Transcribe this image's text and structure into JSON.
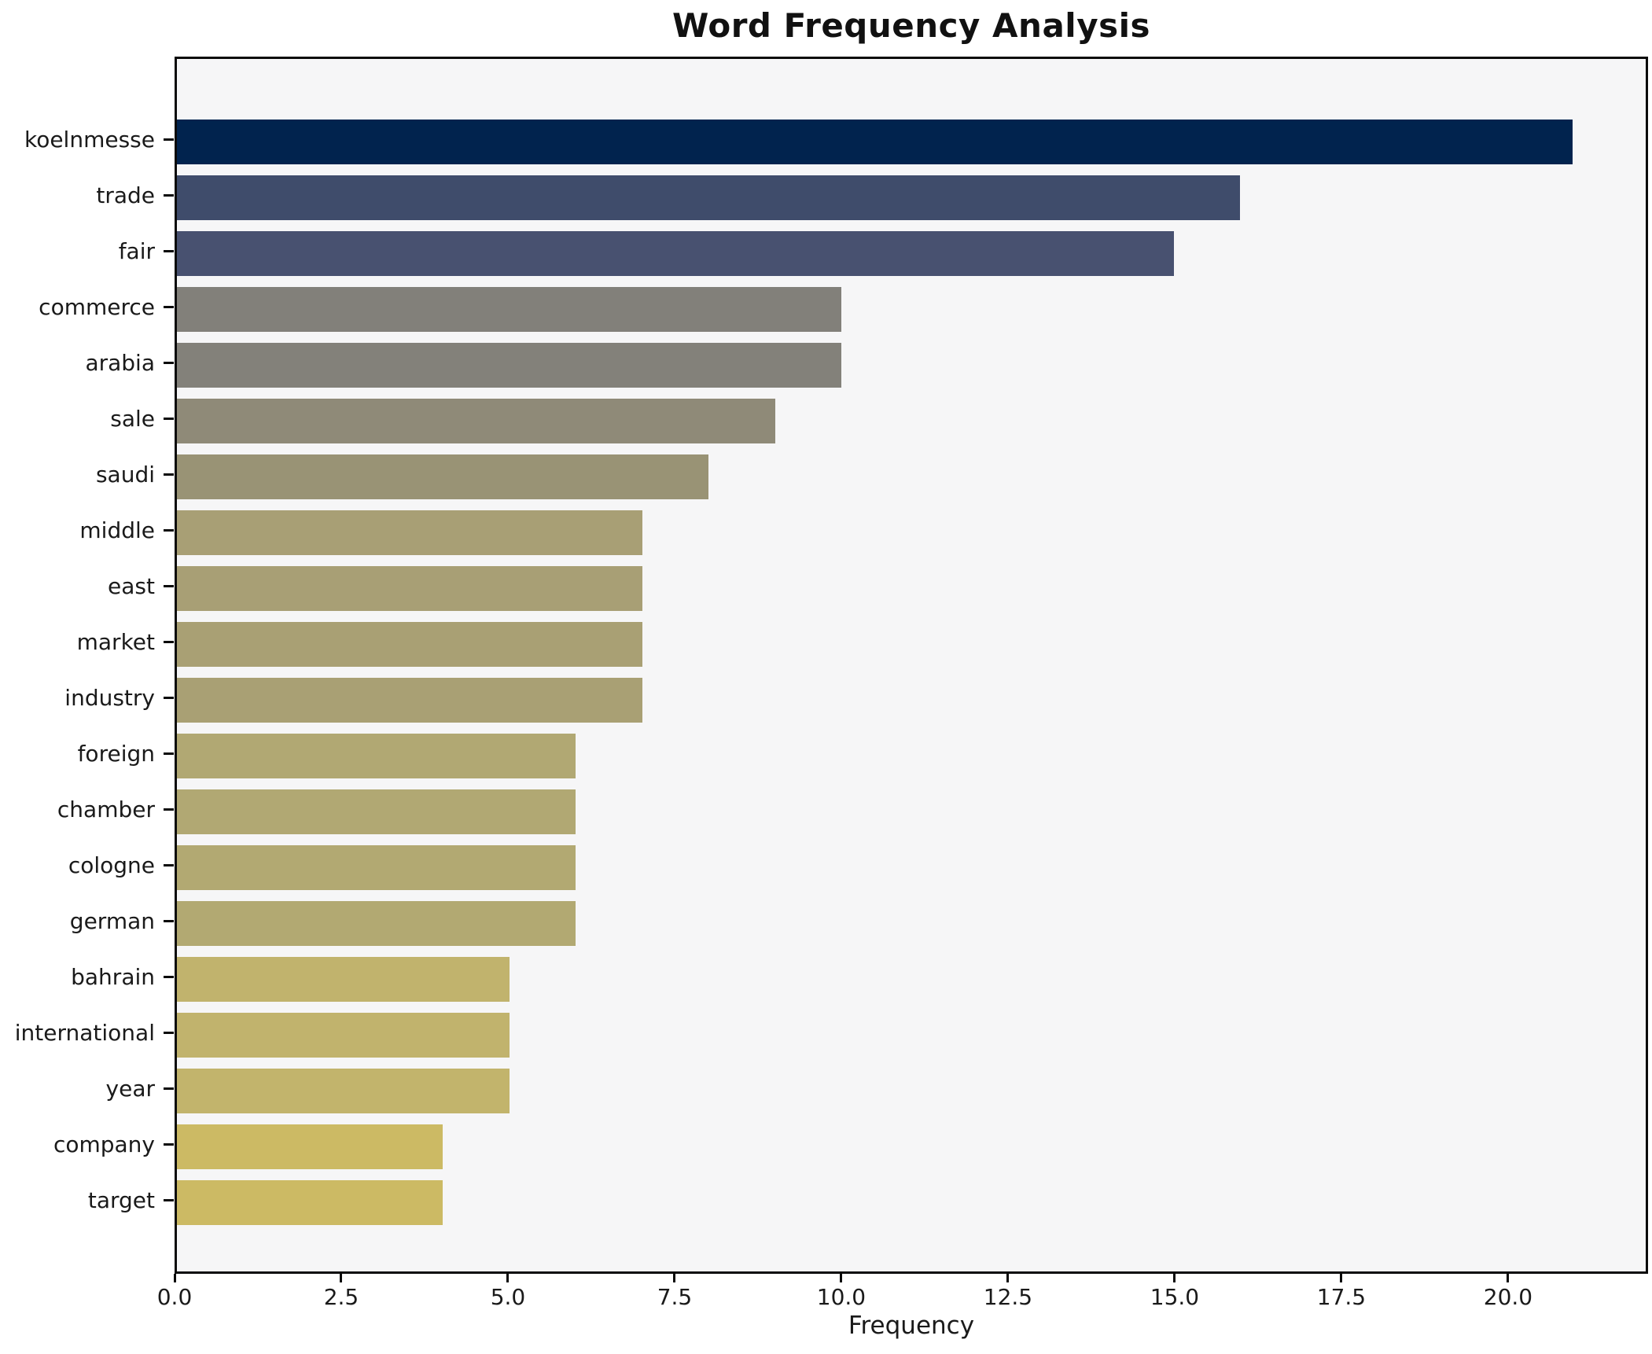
{
  "chart_data": {
    "type": "bar",
    "orientation": "horizontal",
    "title": "Word Frequency Analysis",
    "xlabel": "Frequency",
    "ylabel": "",
    "categories": [
      "koelnmesse",
      "trade",
      "fair",
      "commerce",
      "arabia",
      "sale",
      "saudi",
      "middle",
      "east",
      "market",
      "industry",
      "foreign",
      "chamber",
      "cologne",
      "german",
      "bahrain",
      "international",
      "year",
      "company",
      "target"
    ],
    "values": [
      21,
      16,
      15,
      10,
      10,
      9,
      8,
      7,
      7,
      7,
      7,
      6,
      6,
      6,
      6,
      5,
      5,
      5,
      4,
      4
    ],
    "bar_colors": [
      "#01234e",
      "#3f4c6b",
      "#485170",
      "#82807a",
      "#83817a",
      "#8f8a78",
      "#999375",
      "#a89f75",
      "#a89f75",
      "#a9a074",
      "#a9a074",
      "#b1a873",
      "#b1a873",
      "#b2a972",
      "#b2a972",
      "#c1b36d",
      "#c1b36d",
      "#c2b46c",
      "#ccba64",
      "#ccba64"
    ],
    "xlim": [
      0,
      22.1
    ],
    "xticks": [
      0,
      2.5,
      5,
      7.5,
      10,
      12.5,
      15,
      17.5,
      20
    ],
    "xtick_labels": [
      "0.0",
      "2.5",
      "5.0",
      "7.5",
      "10.0",
      "12.5",
      "15.0",
      "17.5",
      "20.0"
    ],
    "grid": false,
    "legend": "none",
    "plot_background": "#f6f6f7",
    "figure_background": "#ffffff",
    "spine_color": "#0a0a0a"
  }
}
